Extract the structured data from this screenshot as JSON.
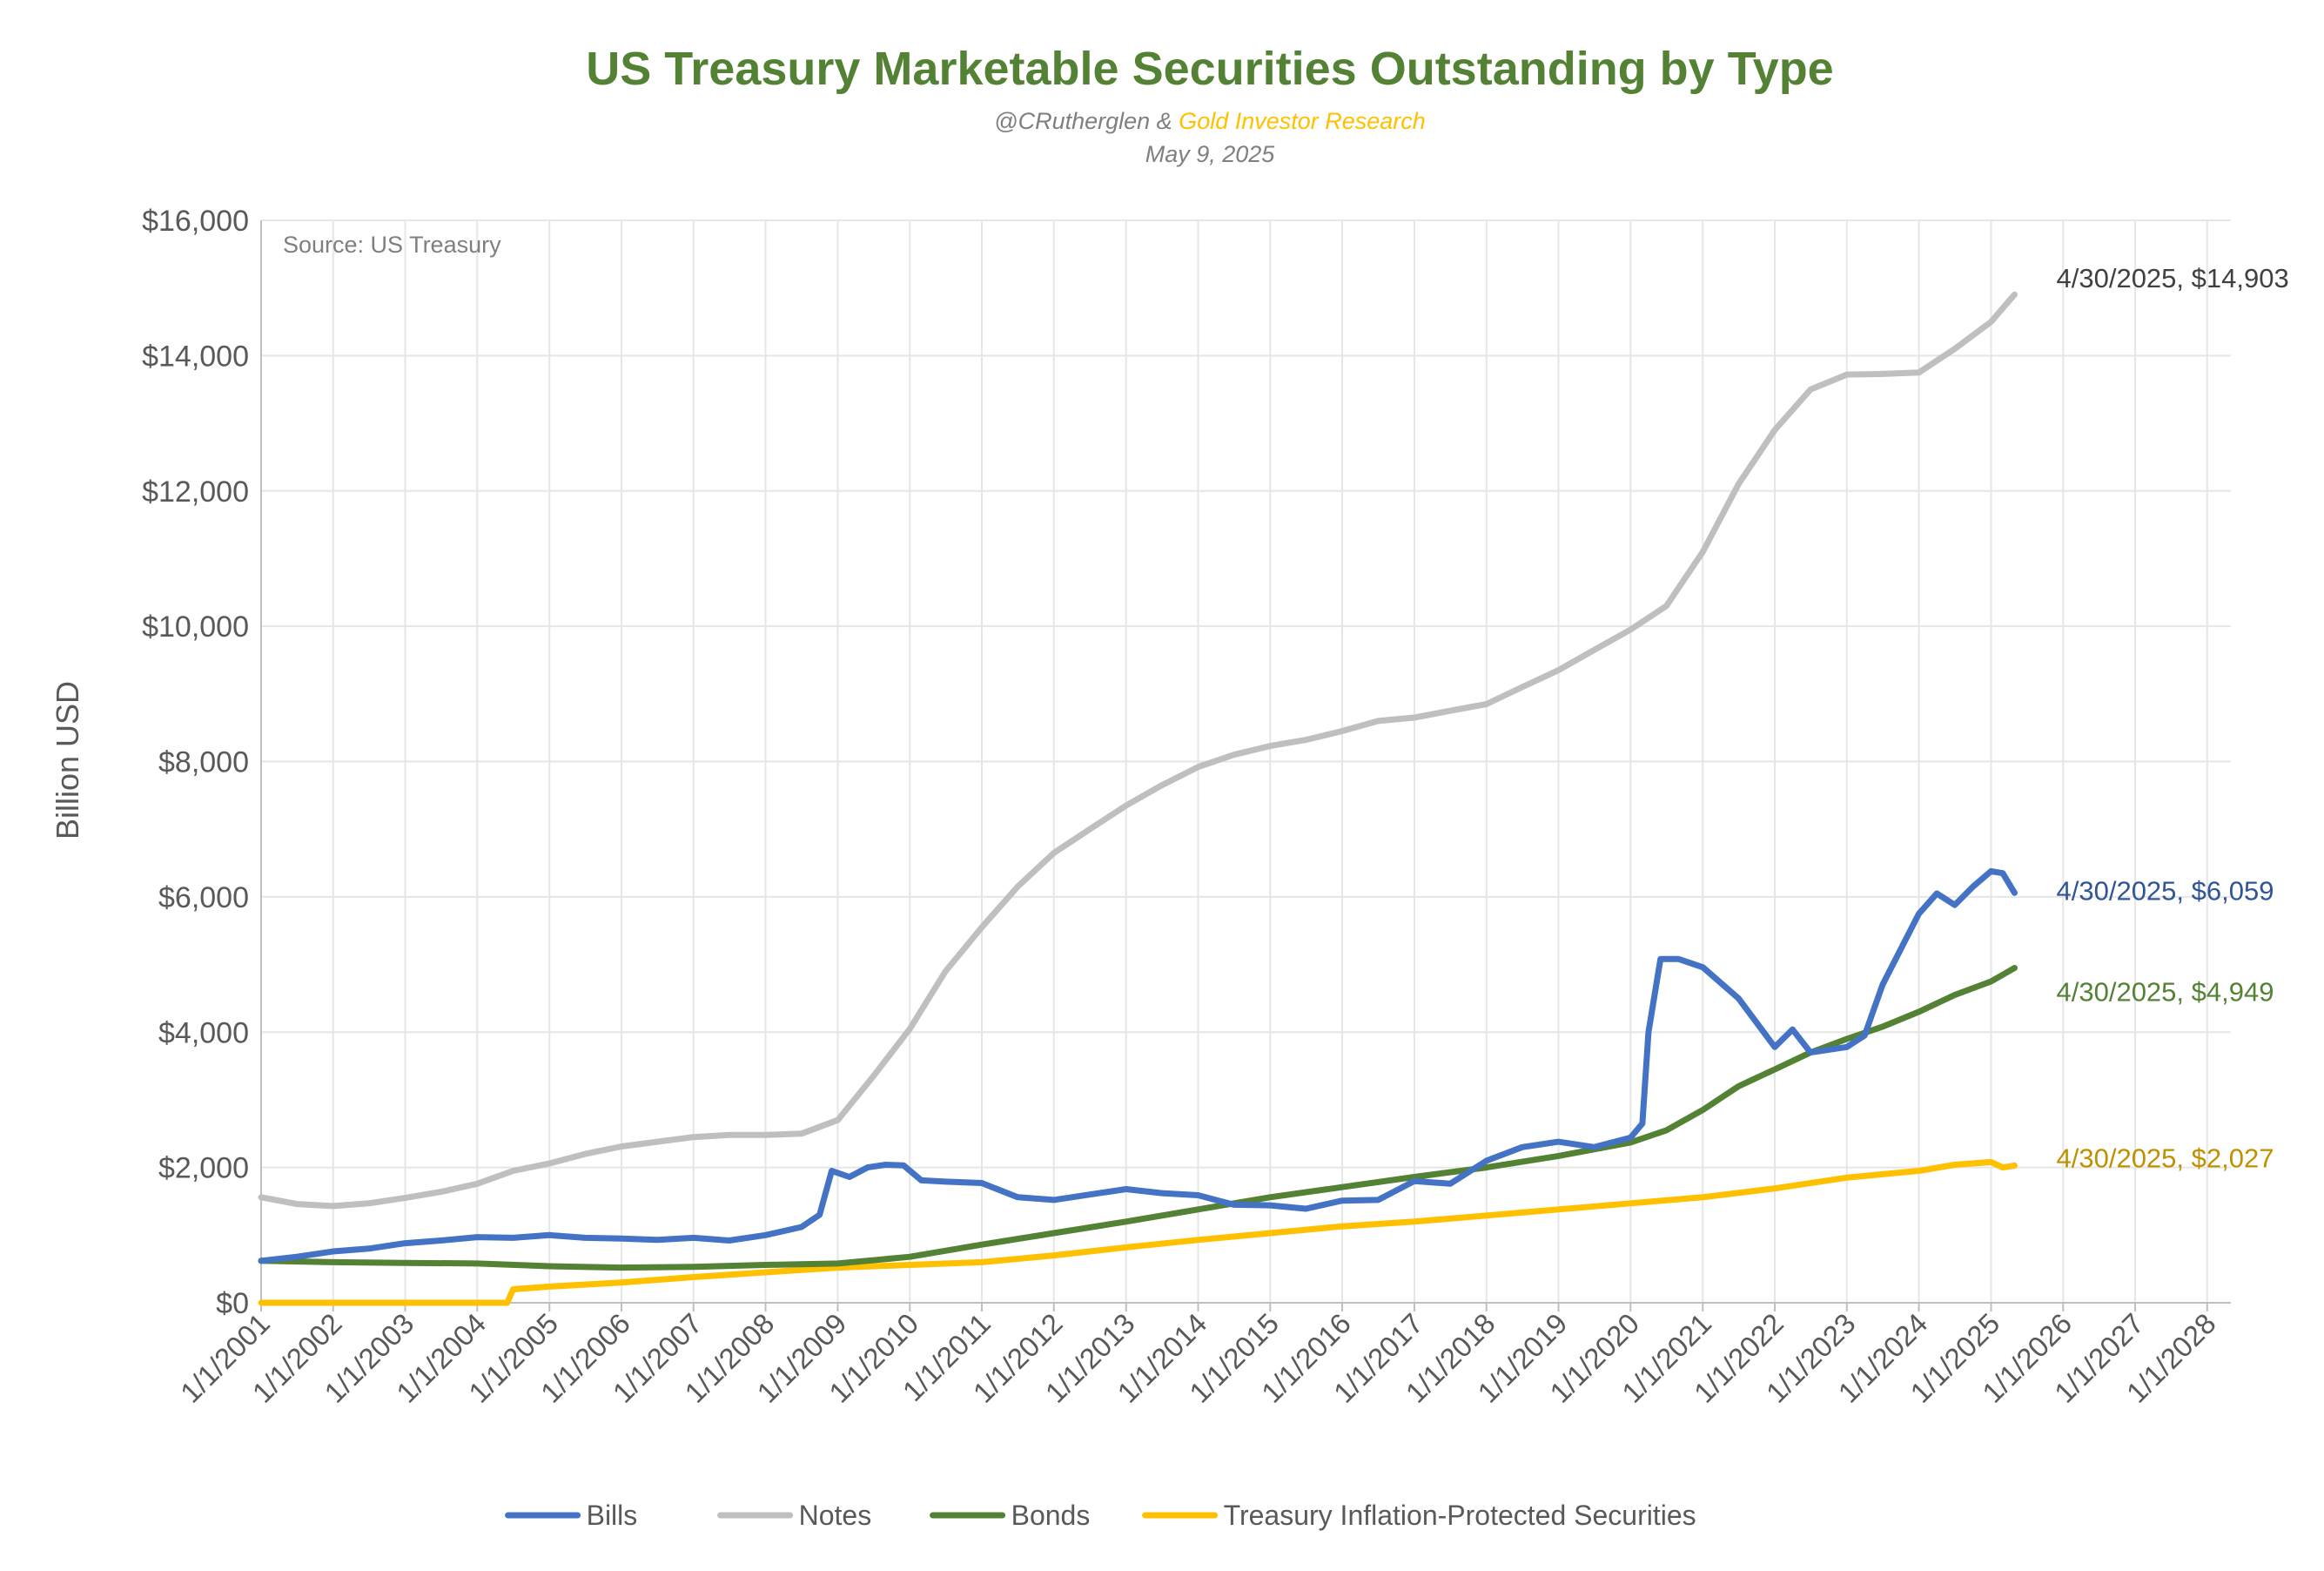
{
  "header": {
    "title": "US Treasury Marketable Securities Outstanding by Type",
    "author": "@CRutherglen",
    "author_sep": " & ",
    "org": "Gold Investor Research",
    "date": "May 9, 2025",
    "source": "Source: US Treasury"
  },
  "colors": {
    "title": "#548235",
    "org": "#FFC000",
    "bills": "#4472C4",
    "notes": "#BFBFBF",
    "bonds": "#548235",
    "tips": "#FFC000",
    "grid": "#E6E6E6",
    "axis": "#BFBFBF",
    "text": "#595959"
  },
  "chart_data": {
    "type": "line",
    "title": "US Treasury Marketable Securities Outstanding by Type",
    "xlabel": "",
    "ylabel": "Billion USD",
    "ylim": [
      0,
      16000
    ],
    "yticks": [
      "$0",
      "$2,000",
      "$4,000",
      "$6,000",
      "$8,000",
      "$10,000",
      "$12,000",
      "$14,000",
      "$16,000"
    ],
    "xlim": [
      "1/1/2001",
      "4/30/2028"
    ],
    "xticks": [
      "1/1/2001",
      "1/1/2002",
      "1/1/2003",
      "1/1/2004",
      "1/1/2005",
      "1/1/2006",
      "1/1/2007",
      "1/1/2008",
      "1/1/2009",
      "1/1/2010",
      "1/1/2011",
      "1/1/2012",
      "1/1/2013",
      "1/1/2014",
      "1/1/2015",
      "1/1/2016",
      "1/1/2017",
      "1/1/2018",
      "1/1/2019",
      "1/1/2020",
      "1/1/2021",
      "1/1/2022",
      "1/1/2023",
      "1/1/2024",
      "1/1/2025",
      "1/1/2026",
      "1/1/2027",
      "1/1/2028"
    ],
    "grid": true,
    "legend_position": "bottom",
    "series": [
      {
        "name": "Bills",
        "color": "#4472C4",
        "end_label": "4/30/2025, $6,059",
        "points": [
          [
            "1/1/2001",
            620
          ],
          [
            "7/1/2001",
            680
          ],
          [
            "1/1/2002",
            760
          ],
          [
            "7/1/2002",
            800
          ],
          [
            "1/1/2003",
            880
          ],
          [
            "7/1/2003",
            920
          ],
          [
            "1/1/2004",
            970
          ],
          [
            "7/1/2004",
            960
          ],
          [
            "1/1/2005",
            1000
          ],
          [
            "7/1/2005",
            960
          ],
          [
            "1/1/2006",
            950
          ],
          [
            "7/1/2006",
            930
          ],
          [
            "1/1/2007",
            960
          ],
          [
            "7/1/2007",
            920
          ],
          [
            "1/1/2008",
            1000
          ],
          [
            "7/1/2008",
            1120
          ],
          [
            "10/1/2008",
            1300
          ],
          [
            "12/1/2008",
            1950
          ],
          [
            "3/1/2009",
            1860
          ],
          [
            "6/1/2009",
            2000
          ],
          [
            "9/1/2009",
            2040
          ],
          [
            "12/1/2009",
            2030
          ],
          [
            "3/1/2010",
            1810
          ],
          [
            "7/1/2010",
            1790
          ],
          [
            "1/1/2011",
            1770
          ],
          [
            "7/1/2011",
            1560
          ],
          [
            "1/1/2012",
            1520
          ],
          [
            "7/1/2012",
            1600
          ],
          [
            "1/1/2013",
            1680
          ],
          [
            "7/1/2013",
            1620
          ],
          [
            "1/1/2014",
            1590
          ],
          [
            "7/1/2014",
            1450
          ],
          [
            "1/1/2015",
            1440
          ],
          [
            "7/1/2015",
            1390
          ],
          [
            "1/1/2016",
            1510
          ],
          [
            "7/1/2016",
            1520
          ],
          [
            "1/1/2017",
            1800
          ],
          [
            "7/1/2017",
            1760
          ],
          [
            "1/1/2018",
            2100
          ],
          [
            "7/1/2018",
            2300
          ],
          [
            "1/1/2019",
            2380
          ],
          [
            "7/1/2019",
            2300
          ],
          [
            "1/1/2020",
            2440
          ],
          [
            "3/1/2020",
            2650
          ],
          [
            "4/1/2020",
            4000
          ],
          [
            "6/1/2020",
            5080
          ],
          [
            "9/1/2020",
            5080
          ],
          [
            "1/1/2021",
            4960
          ],
          [
            "7/1/2021",
            4500
          ],
          [
            "1/1/2022",
            3780
          ],
          [
            "4/1/2022",
            4040
          ],
          [
            "7/1/2022",
            3700
          ],
          [
            "1/1/2023",
            3780
          ],
          [
            "4/1/2023",
            3950
          ],
          [
            "7/1/2023",
            4700
          ],
          [
            "1/1/2024",
            5750
          ],
          [
            "4/1/2024",
            6050
          ],
          [
            "7/1/2024",
            5880
          ],
          [
            "10/1/2024",
            6150
          ],
          [
            "1/1/2025",
            6380
          ],
          [
            "3/1/2025",
            6350
          ],
          [
            "4/30/2025",
            6059
          ]
        ]
      },
      {
        "name": "Notes",
        "color": "#BFBFBF",
        "end_label": "4/30/2025, $14,903",
        "points": [
          [
            "1/1/2001",
            1560
          ],
          [
            "7/1/2001",
            1460
          ],
          [
            "1/1/2002",
            1430
          ],
          [
            "7/1/2002",
            1470
          ],
          [
            "1/1/2003",
            1550
          ],
          [
            "7/1/2003",
            1640
          ],
          [
            "1/1/2004",
            1760
          ],
          [
            "7/1/2004",
            1950
          ],
          [
            "1/1/2005",
            2060
          ],
          [
            "7/1/2005",
            2200
          ],
          [
            "1/1/2006",
            2310
          ],
          [
            "7/1/2006",
            2380
          ],
          [
            "1/1/2007",
            2450
          ],
          [
            "7/1/2007",
            2480
          ],
          [
            "1/1/2008",
            2480
          ],
          [
            "7/1/2008",
            2500
          ],
          [
            "1/1/2009",
            2700
          ],
          [
            "7/1/2009",
            3350
          ],
          [
            "1/1/2010",
            4050
          ],
          [
            "7/1/2010",
            4900
          ],
          [
            "1/1/2011",
            5550
          ],
          [
            "7/1/2011",
            6150
          ],
          [
            "1/1/2012",
            6650
          ],
          [
            "7/1/2012",
            7000
          ],
          [
            "1/1/2013",
            7350
          ],
          [
            "7/1/2013",
            7650
          ],
          [
            "1/1/2014",
            7920
          ],
          [
            "7/1/2014",
            8100
          ],
          [
            "1/1/2015",
            8230
          ],
          [
            "7/1/2015",
            8320
          ],
          [
            "1/1/2016",
            8450
          ],
          [
            "7/1/2016",
            8600
          ],
          [
            "1/1/2017",
            8650
          ],
          [
            "7/1/2017",
            8750
          ],
          [
            "1/1/2018",
            8850
          ],
          [
            "7/1/2018",
            9100
          ],
          [
            "1/1/2019",
            9350
          ],
          [
            "7/1/2019",
            9650
          ],
          [
            "1/1/2020",
            9950
          ],
          [
            "7/1/2020",
            10300
          ],
          [
            "1/1/2021",
            11100
          ],
          [
            "7/1/2021",
            12100
          ],
          [
            "1/1/2022",
            12900
          ],
          [
            "7/1/2022",
            13500
          ],
          [
            "1/1/2023",
            13720
          ],
          [
            "7/1/2023",
            13730
          ],
          [
            "1/1/2024",
            13750
          ],
          [
            "7/1/2024",
            14100
          ],
          [
            "1/1/2025",
            14500
          ],
          [
            "4/30/2025",
            14903
          ]
        ]
      },
      {
        "name": "Bonds",
        "color": "#548235",
        "end_label": "4/30/2025, $4,949",
        "points": [
          [
            "1/1/2001",
            620
          ],
          [
            "1/1/2002",
            600
          ],
          [
            "1/1/2003",
            590
          ],
          [
            "1/1/2004",
            580
          ],
          [
            "1/1/2005",
            540
          ],
          [
            "1/1/2006",
            520
          ],
          [
            "1/1/2007",
            530
          ],
          [
            "1/1/2008",
            560
          ],
          [
            "1/1/2009",
            580
          ],
          [
            "1/1/2010",
            680
          ],
          [
            "1/1/2011",
            860
          ],
          [
            "1/1/2012",
            1030
          ],
          [
            "1/1/2013",
            1200
          ],
          [
            "1/1/2014",
            1380
          ],
          [
            "1/1/2015",
            1560
          ],
          [
            "1/1/2016",
            1710
          ],
          [
            "1/1/2017",
            1860
          ],
          [
            "1/1/2018",
            2000
          ],
          [
            "1/1/2019",
            2170
          ],
          [
            "1/1/2020",
            2370
          ],
          [
            "7/1/2020",
            2550
          ],
          [
            "1/1/2021",
            2850
          ],
          [
            "7/1/2021",
            3200
          ],
          [
            "1/1/2022",
            3450
          ],
          [
            "7/1/2022",
            3700
          ],
          [
            "1/1/2023",
            3900
          ],
          [
            "7/1/2023",
            4080
          ],
          [
            "1/1/2024",
            4300
          ],
          [
            "7/1/2024",
            4550
          ],
          [
            "1/1/2025",
            4750
          ],
          [
            "4/30/2025",
            4949
          ]
        ]
      },
      {
        "name": "Treasury Inflation-Protected Securities",
        "color": "#FFC000",
        "end_label": "4/30/2025, $2,027",
        "points": [
          [
            "1/1/2001",
            0
          ],
          [
            "1/1/2002",
            0
          ],
          [
            "1/1/2003",
            0
          ],
          [
            "1/1/2004",
            0
          ],
          [
            "6/1/2004",
            0
          ],
          [
            "7/1/2004",
            200
          ],
          [
            "1/1/2005",
            240
          ],
          [
            "1/1/2006",
            300
          ],
          [
            "1/1/2007",
            380
          ],
          [
            "1/1/2008",
            450
          ],
          [
            "1/1/2009",
            520
          ],
          [
            "1/1/2010",
            560
          ],
          [
            "1/1/2011",
            600
          ],
          [
            "1/1/2012",
            700
          ],
          [
            "1/1/2013",
            820
          ],
          [
            "1/1/2014",
            930
          ],
          [
            "1/1/2015",
            1030
          ],
          [
            "1/1/2016",
            1130
          ],
          [
            "1/1/2017",
            1200
          ],
          [
            "1/1/2018",
            1290
          ],
          [
            "1/1/2019",
            1380
          ],
          [
            "1/1/2020",
            1470
          ],
          [
            "1/1/2021",
            1560
          ],
          [
            "1/1/2022",
            1690
          ],
          [
            "1/1/2023",
            1850
          ],
          [
            "1/1/2024",
            1950
          ],
          [
            "7/1/2024",
            2040
          ],
          [
            "1/1/2025",
            2080
          ],
          [
            "3/1/2025",
            2000
          ],
          [
            "4/30/2025",
            2027
          ]
        ]
      }
    ]
  }
}
